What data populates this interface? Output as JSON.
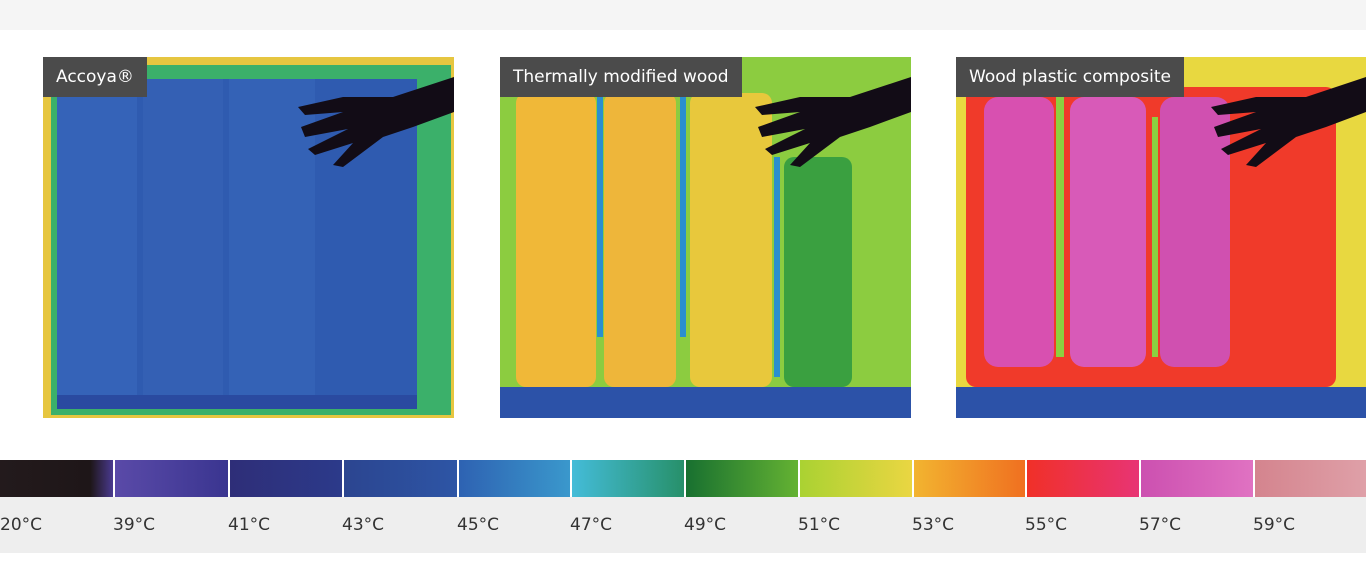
{
  "panels": [
    {
      "label": "Accoya®"
    },
    {
      "label": "Thermally modified wood"
    },
    {
      "label": "Wood plastic composite"
    }
  ],
  "scale": {
    "labels": [
      "20°C",
      "39°C",
      "41°C",
      "43°C",
      "45°C",
      "47°C",
      "49°C",
      "51°C",
      "53°C",
      "55°C",
      "57°C",
      "59°C"
    ]
  }
}
